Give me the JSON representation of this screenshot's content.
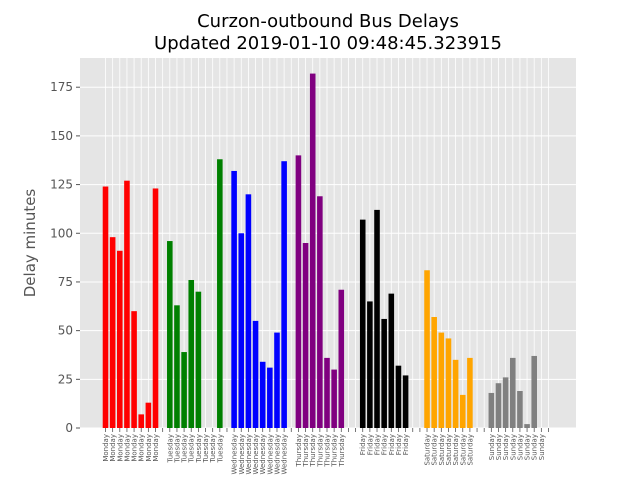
{
  "chart_data": {
    "type": "bar",
    "title_line1": "Curzon-outbound Bus Delays",
    "title_line2": "Updated 2019-01-10 09:48:45.323915",
    "ylabel": "Delay minutes",
    "xlabel": "",
    "ylim": [
      0,
      190
    ],
    "yticks": [
      0,
      25,
      50,
      75,
      100,
      125,
      150,
      175
    ],
    "grid": true,
    "legend": "none",
    "colors": {
      "Monday": "#ff0000",
      "Tuesday": "#008000",
      "Wednesday": "#0000ff",
      "Thursday": "#800080",
      "Friday": "#000000",
      "Saturday": "#ffa500",
      "Sunday": "#808080"
    },
    "bars": [
      {
        "label": "Monday",
        "value": 124
      },
      {
        "label": "Monday",
        "value": 98
      },
      {
        "label": "Monday",
        "value": 91
      },
      {
        "label": "Monday",
        "value": 127
      },
      {
        "label": "Monday",
        "value": 60
      },
      {
        "label": "Monday",
        "value": 7
      },
      {
        "label": "Monday",
        "value": 13
      },
      {
        "label": "Monday",
        "value": 123
      },
      {
        "label": "",
        "value": 0
      },
      {
        "label": "Tuesday",
        "value": 96
      },
      {
        "label": "Tuesday",
        "value": 63
      },
      {
        "label": "Tuesday",
        "value": 39
      },
      {
        "label": "Tuesday",
        "value": 76
      },
      {
        "label": "Tuesday",
        "value": 70
      },
      {
        "label": "Tuesday",
        "value": 0
      },
      {
        "label": "Tuesday",
        "value": 0
      },
      {
        "label": "Tuesday",
        "value": 138
      },
      {
        "label": "",
        "value": 0
      },
      {
        "label": "Wednesday",
        "value": 132
      },
      {
        "label": "Wednesday",
        "value": 100
      },
      {
        "label": "Wednesday",
        "value": 120
      },
      {
        "label": "Wednesday",
        "value": 55
      },
      {
        "label": "Wednesday",
        "value": 34
      },
      {
        "label": "Wednesday",
        "value": 31
      },
      {
        "label": "Wednesday",
        "value": 49
      },
      {
        "label": "Wednesday",
        "value": 137
      },
      {
        "label": "",
        "value": 0
      },
      {
        "label": "Thursday",
        "value": 140
      },
      {
        "label": "Thursday",
        "value": 95
      },
      {
        "label": "Thursday",
        "value": 182
      },
      {
        "label": "Thursday",
        "value": 119
      },
      {
        "label": "Thursday",
        "value": 36
      },
      {
        "label": "Thursday",
        "value": 30
      },
      {
        "label": "Thursday",
        "value": 71
      },
      {
        "label": "",
        "value": 0
      },
      {
        "label": "",
        "value": 0
      },
      {
        "label": "Friday",
        "value": 107
      },
      {
        "label": "Friday",
        "value": 65
      },
      {
        "label": "Friday",
        "value": 112
      },
      {
        "label": "Friday",
        "value": 56
      },
      {
        "label": "Friday",
        "value": 69
      },
      {
        "label": "Friday",
        "value": 32
      },
      {
        "label": "Friday",
        "value": 27
      },
      {
        "label": "",
        "value": 0
      },
      {
        "label": "",
        "value": 0
      },
      {
        "label": "Saturday",
        "value": 81
      },
      {
        "label": "Saturday",
        "value": 57
      },
      {
        "label": "Saturday",
        "value": 49
      },
      {
        "label": "Saturday",
        "value": 46
      },
      {
        "label": "Saturday",
        "value": 35
      },
      {
        "label": "Saturday",
        "value": 17
      },
      {
        "label": "Saturday",
        "value": 36
      },
      {
        "label": "",
        "value": 0
      },
      {
        "label": "",
        "value": 0
      },
      {
        "label": "Sunday",
        "value": 18
      },
      {
        "label": "Sunday",
        "value": 23
      },
      {
        "label": "Sunday",
        "value": 26
      },
      {
        "label": "Sunday",
        "value": 36
      },
      {
        "label": "Sunday",
        "value": 19
      },
      {
        "label": "Sunday",
        "value": 2
      },
      {
        "label": "Sunday",
        "value": 37
      },
      {
        "label": "Sunday",
        "value": 0
      },
      {
        "label": "",
        "value": 0
      }
    ]
  }
}
